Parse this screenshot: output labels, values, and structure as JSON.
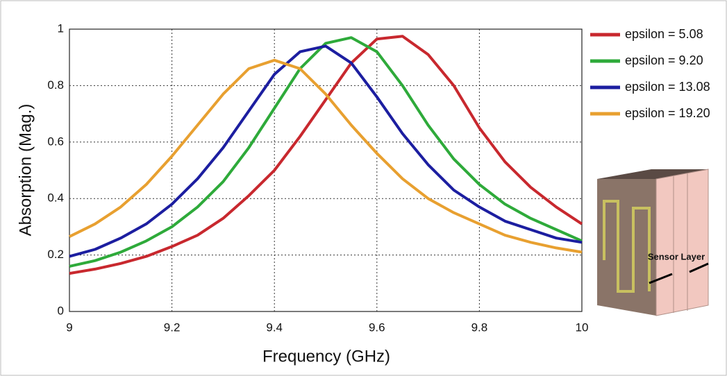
{
  "chart_data": {
    "type": "line",
    "x_label": "Frequency (GHz)",
    "y_label": "Absorption (Mag.)",
    "x": [
      9,
      9.05,
      9.1,
      9.15,
      9.2,
      9.25,
      9.3,
      9.35,
      9.4,
      9.45,
      9.5,
      9.55,
      9.6,
      9.65,
      9.7,
      9.75,
      9.8,
      9.85,
      9.9,
      9.95,
      10
    ],
    "series": [
      {
        "name": "epsilon = 5.08",
        "color": "#c8282e",
        "values": [
          0.135,
          0.15,
          0.17,
          0.195,
          0.23,
          0.27,
          0.33,
          0.41,
          0.5,
          0.62,
          0.75,
          0.88,
          0.965,
          0.975,
          0.91,
          0.8,
          0.65,
          0.53,
          0.44,
          0.37,
          0.31
        ]
      },
      {
        "name": "epsilon = 9.20",
        "color": "#2eaa3a",
        "values": [
          0.16,
          0.18,
          0.21,
          0.25,
          0.3,
          0.37,
          0.46,
          0.58,
          0.72,
          0.86,
          0.95,
          0.97,
          0.92,
          0.8,
          0.66,
          0.54,
          0.45,
          0.38,
          0.33,
          0.29,
          0.25
        ]
      },
      {
        "name": "epsilon = 13.08",
        "color": "#1c1ea0",
        "values": [
          0.195,
          0.22,
          0.26,
          0.31,
          0.38,
          0.47,
          0.58,
          0.71,
          0.84,
          0.92,
          0.94,
          0.88,
          0.76,
          0.63,
          0.52,
          0.43,
          0.37,
          0.32,
          0.29,
          0.26,
          0.245
        ]
      },
      {
        "name": "epsilon = 19.20",
        "color": "#e8a030",
        "values": [
          0.265,
          0.31,
          0.37,
          0.45,
          0.55,
          0.66,
          0.77,
          0.86,
          0.89,
          0.86,
          0.77,
          0.66,
          0.56,
          0.47,
          0.4,
          0.35,
          0.31,
          0.27,
          0.245,
          0.225,
          0.21
        ]
      }
    ],
    "xlim": [
      9,
      10
    ],
    "ylim": [
      0,
      1
    ],
    "xticks": [
      9,
      9.2,
      9.4,
      9.6,
      9.8,
      10
    ],
    "yticks": [
      0,
      0.2,
      0.4,
      0.6,
      0.8,
      1
    ],
    "grid": true,
    "inset_annotation": "Sensor Layer"
  }
}
